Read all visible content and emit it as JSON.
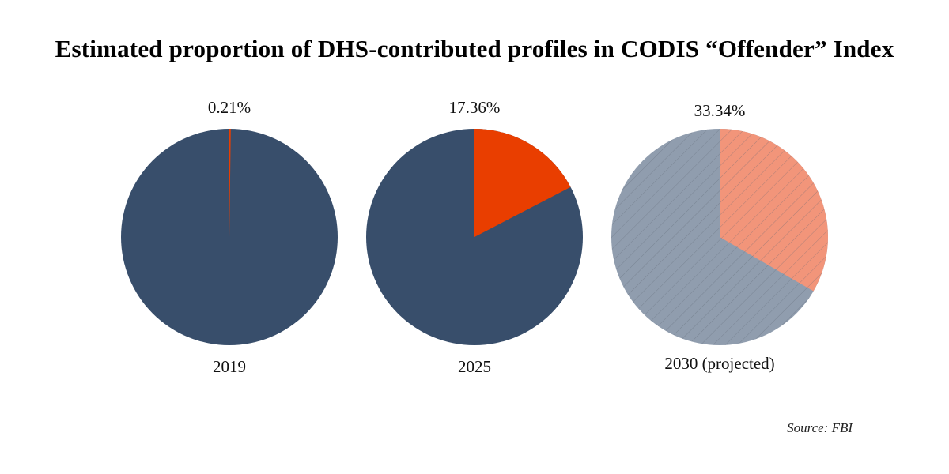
{
  "chart_data": {
    "type": "pie",
    "title": "Estimated proportion of DHS-contributed profiles in CODIS “Offender” Index",
    "source": "Source: FBI",
    "colors": {
      "dhs": "#e93e00",
      "other": "#384e6b",
      "dhs_projected": "#f2957a",
      "other_projected": "#909dae"
    },
    "pies": [
      {
        "label": "2019",
        "value": 0.21,
        "value_label": "0.21%",
        "projected": false
      },
      {
        "label": "2025",
        "value": 17.36,
        "value_label": "17.36%",
        "projected": false
      },
      {
        "label": "2030 (projected)",
        "value": 33.34,
        "value_label": "33.34%",
        "projected": true
      }
    ]
  }
}
